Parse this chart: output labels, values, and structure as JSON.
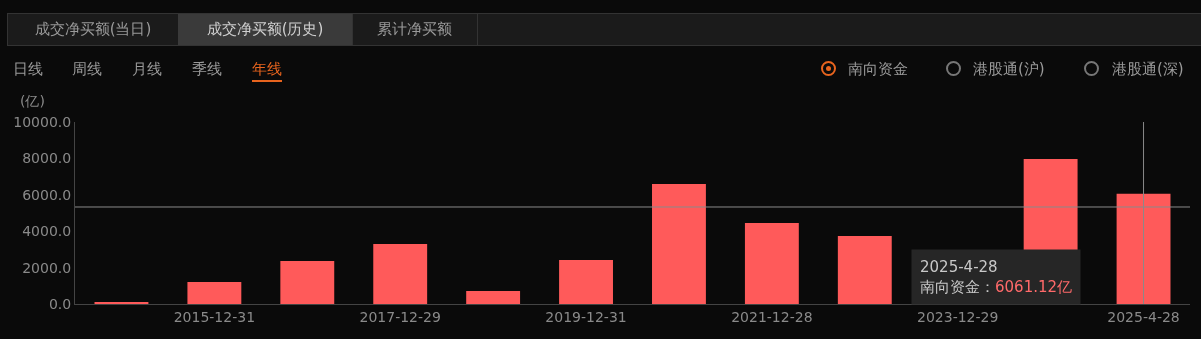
{
  "chart_data": {
    "type": "bar",
    "categories": [
      null,
      "2015-12-31",
      null,
      "2017-12-29",
      null,
      "2019-12-31",
      null,
      "2021-12-28",
      null,
      "2023-12-29",
      null,
      "2025-4-28"
    ],
    "series": [
      {
        "color": "#ff5a5a",
        "values": [
          110,
          1210,
          2360,
          3300,
          710,
          2420,
          6590,
          4450,
          3740,
          null,
          7970,
          6061.12
        ]
      }
    ],
    "ylabel": "(亿)",
    "ylim": [
      0,
      10000
    ],
    "yticks": [
      {
        "value": 0,
        "label": "0.0"
      },
      {
        "value": 2000,
        "label": "2000.0"
      },
      {
        "value": 4000,
        "label": "4000.0"
      },
      {
        "value": 6000,
        "label": "6000.0"
      },
      {
        "value": 8000,
        "label": "8000.0"
      },
      {
        "value": 10000,
        "label": "10000.0"
      }
    ],
    "grid": false,
    "ref_lines": [
      {
        "axis": "x",
        "value": "2025-4-28",
        "color": "#8a8a8a"
      },
      {
        "axis": "y",
        "value": 5330,
        "color": "#8a8a8a"
      }
    ],
    "annotations": [
      "成交净买额(当日)",
      "成交净买额(历史)",
      "累计净买额",
      "日线",
      "周线",
      "月线",
      "季线",
      "年线",
      "南向资金",
      "港股通(沪)",
      "港股通(深)",
      "2025-4-28\n南向资金：6061.12亿"
    ]
  }
}
